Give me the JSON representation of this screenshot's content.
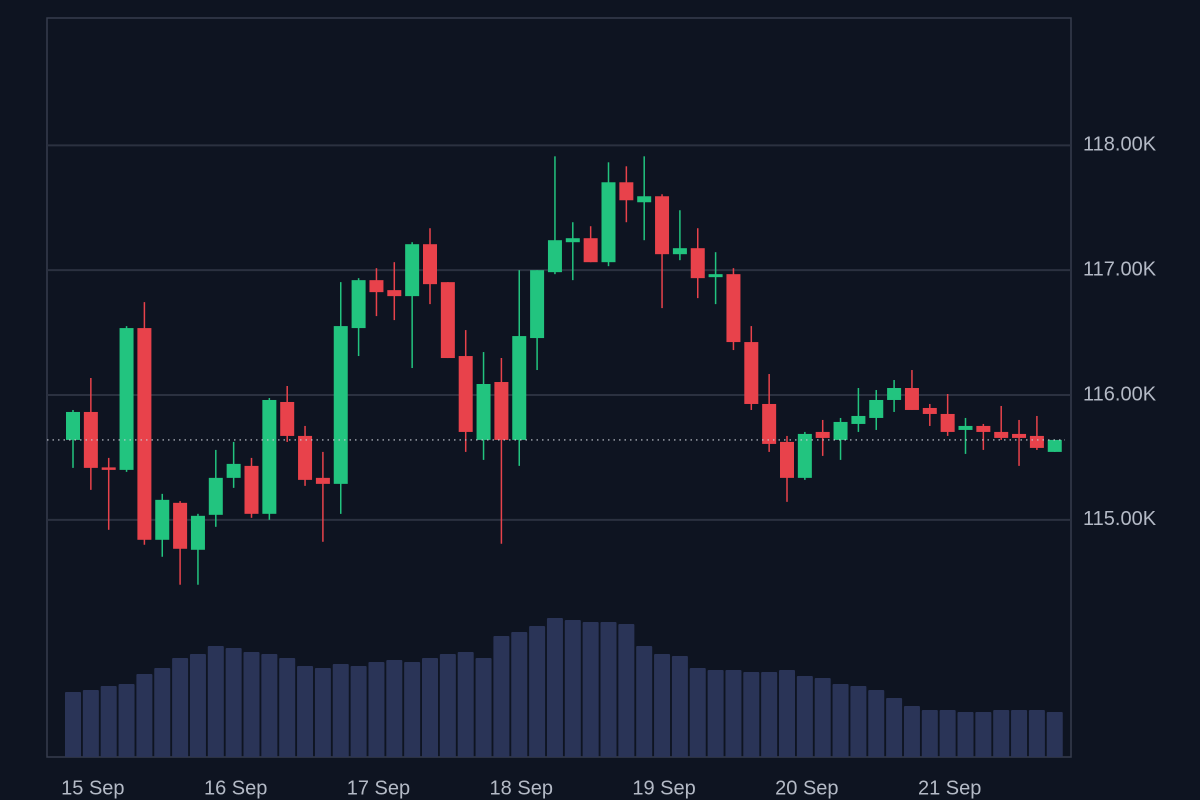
{
  "chart_data": {
    "type": "candlestick",
    "x": [
      null,
      "15 Sep",
      null,
      null,
      null,
      null,
      null,
      null,
      null,
      "16 Sep",
      null,
      null,
      null,
      null,
      null,
      null,
      null,
      "17 Sep",
      null,
      null,
      null,
      null,
      null,
      null,
      null,
      "18 Sep",
      null,
      null,
      null,
      null,
      null,
      null,
      null,
      "19 Sep",
      null,
      null,
      null,
      null,
      null,
      null,
      null,
      "20 Sep",
      null,
      null,
      null,
      null,
      null,
      null,
      null,
      "21 Sep",
      null,
      null,
      null,
      null,
      null,
      null
    ],
    "open": [
      115640,
      115864,
      115420,
      115400,
      116536,
      114840,
      115136,
      114760,
      115040,
      115336,
      115432,
      115048,
      115944,
      115672,
      115336,
      115288,
      116536,
      116920,
      116840,
      116792,
      117208,
      116904,
      116312,
      115640,
      116104,
      115640,
      116456,
      116984,
      117224,
      117256,
      117064,
      117704,
      117544,
      117592,
      117128,
      117176,
      116944,
      116968,
      116424,
      115928,
      115624,
      115336,
      115704,
      115640,
      115768,
      115816,
      115960,
      116056,
      115896,
      115848,
      115720,
      115752,
      115704,
      115688,
      115672,
      115544
    ],
    "high": [
      115880,
      116136,
      115496,
      116552,
      116744,
      115208,
      115150,
      115048,
      115560,
      115624,
      115496,
      115976,
      116072,
      115752,
      115544,
      116904,
      116936,
      117016,
      117064,
      117224,
      117336,
      116904,
      116520,
      116344,
      116296,
      117000,
      117000,
      117912,
      117384,
      117352,
      117864,
      117832,
      117912,
      117608,
      117480,
      117336,
      117144,
      117016,
      116552,
      116168,
      115672,
      115704,
      115800,
      115816,
      116056,
      116040,
      116120,
      116200,
      115928,
      116008,
      115816,
      115768,
      115912,
      115800,
      115832,
      115640
    ],
    "low": [
      115416,
      115240,
      114920,
      115384,
      114800,
      114704,
      114480,
      114480,
      114944,
      115256,
      115016,
      115000,
      115624,
      115272,
      114824,
      115048,
      116312,
      116632,
      116600,
      116216,
      116728,
      116296,
      115544,
      115480,
      114808,
      115432,
      116200,
      116968,
      116920,
      117064,
      117032,
      117384,
      117240,
      116696,
      117080,
      116776,
      116728,
      116360,
      115880,
      115544,
      115144,
      115320,
      115512,
      115480,
      115704,
      115720,
      115864,
      115880,
      115752,
      115672,
      115528,
      115560,
      115640,
      115432,
      115560,
      115544
    ],
    "close": [
      115864,
      115416,
      115400,
      116536,
      114840,
      115160,
      114768,
      115032,
      115336,
      115448,
      115048,
      115960,
      115672,
      115320,
      115288,
      116552,
      116920,
      116824,
      116792,
      117208,
      116888,
      116296,
      115704,
      116088,
      115640,
      116472,
      117000,
      117240,
      117256,
      117064,
      117704,
      117560,
      117592,
      117128,
      117176,
      116936,
      116968,
      116424,
      115928,
      115608,
      115336,
      115688,
      115656,
      115784,
      115832,
      115960,
      116056,
      115880,
      115848,
      115704,
      115752,
      115704,
      115656,
      115656,
      115576,
      115640
    ],
    "volume": [
      65,
      67,
      71,
      73,
      83,
      89,
      99,
      103,
      111,
      109,
      105,
      103,
      99,
      91,
      89,
      93,
      91,
      95,
      97,
      95,
      99,
      103,
      105,
      99,
      121,
      125,
      131,
      139,
      137,
      135,
      135,
      133,
      111,
      103,
      101,
      89,
      87,
      87,
      85,
      85,
      87,
      81,
      79,
      73,
      71,
      67,
      59,
      51,
      47,
      47,
      45,
      45,
      47,
      47,
      47,
      45
    ],
    "ylim": [
      113100,
      119020
    ],
    "yticks": [
      {
        "value": 115000,
        "label": "115.00K"
      },
      {
        "value": 116000,
        "label": "116.00K"
      },
      {
        "value": 117000,
        "label": "117.00K"
      },
      {
        "value": 118000,
        "label": "118.00K"
      }
    ],
    "grid": true,
    "up_color": "#22c47f",
    "down_color": "#e8424b",
    "volume_color": "#2a3457"
  }
}
